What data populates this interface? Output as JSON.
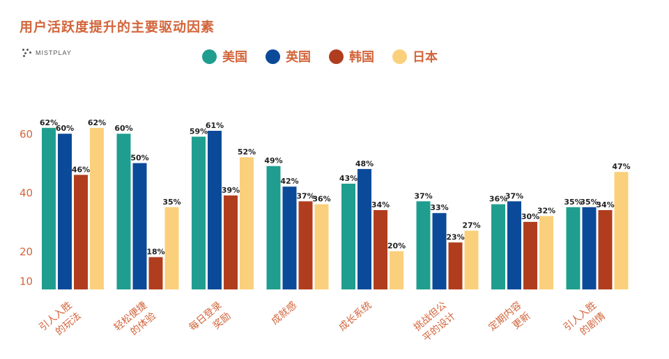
{
  "title": "用户活跃度提升的主要驱动因素",
  "logo": {
    "text": "MISTPLAY",
    "icon": "mistplay-logo-icon"
  },
  "colors": {
    "美国": "#1f9e8f",
    "英国": "#0b4a99",
    "韩国": "#b03e1e",
    "日本": "#fbd07c",
    "accent": "#d2643a",
    "label": "#222222"
  },
  "chart_data": {
    "type": "bar",
    "title": "用户活跃度提升的主要驱动因素",
    "categories": [
      [
        "引人入胜",
        "的玩法"
      ],
      [
        "轻松便捷",
        "的体验"
      ],
      [
        "每日登录",
        "奖励"
      ],
      [
        "成就感"
      ],
      [
        "成长系统"
      ],
      [
        "挑战但公",
        "平的设计"
      ],
      [
        "定期内容",
        "更新"
      ],
      [
        "引人入胜",
        "的剧情"
      ]
    ],
    "series": [
      {
        "name": "美国",
        "values": [
          62,
          60,
          59,
          49,
          43,
          37,
          36,
          35
        ]
      },
      {
        "name": "英国",
        "values": [
          60,
          50,
          61,
          42,
          48,
          33,
          37,
          35
        ]
      },
      {
        "name": "韩国",
        "values": [
          46,
          18,
          39,
          37,
          34,
          23,
          30,
          34
        ]
      },
      {
        "name": "日本",
        "values": [
          62,
          35,
          52,
          36,
          20,
          27,
          32,
          47
        ]
      }
    ],
    "y_ticks": [
      10,
      20,
      40,
      60
    ],
    "ylim": [
      7,
      70
    ],
    "value_suffix": "%",
    "legend_position": "top",
    "grid": false,
    "xlabel": "",
    "ylabel": ""
  }
}
